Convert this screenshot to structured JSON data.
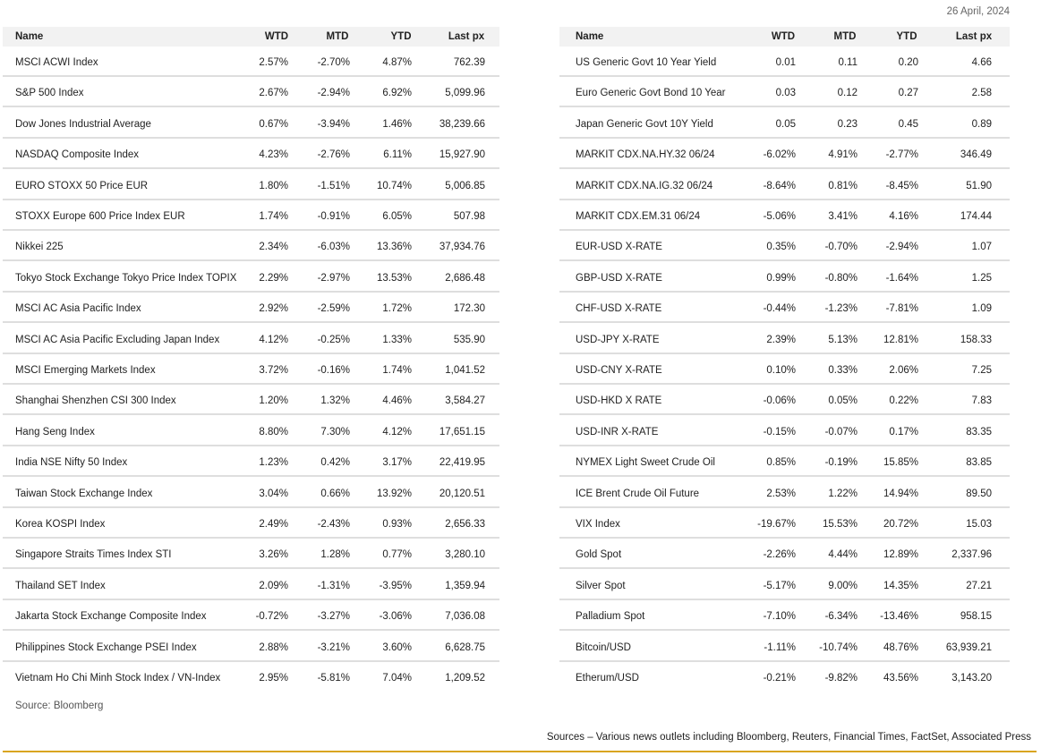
{
  "date": "26 April, 2024",
  "left_table": {
    "header": [
      "Name",
      "WTD",
      "MTD",
      "YTD",
      "Last px"
    ],
    "rows": [
      [
        "MSCI ACWI Index",
        "2.57%",
        "-2.70%",
        "4.87%",
        "762.39"
      ],
      [
        "S&P 500 Index",
        "2.67%",
        "-2.94%",
        "6.92%",
        "5,099.96"
      ],
      [
        "Dow Jones Industrial Average",
        "0.67%",
        "-3.94%",
        "1.46%",
        "38,239.66"
      ],
      [
        "NASDAQ Composite Index",
        "4.23%",
        "-2.76%",
        "6.11%",
        "15,927.90"
      ],
      [
        "EURO STOXX 50 Price EUR",
        "1.80%",
        "-1.51%",
        "10.74%",
        "5,006.85"
      ],
      [
        "STOXX Europe 600 Price Index EUR",
        "1.74%",
        "-0.91%",
        "6.05%",
        "507.98"
      ],
      [
        "Nikkei 225",
        "2.34%",
        "-6.03%",
        "13.36%",
        "37,934.76"
      ],
      [
        "Tokyo Stock Exchange Tokyo Price Index TOPIX",
        "2.29%",
        "-2.97%",
        "13.53%",
        "2,686.48"
      ],
      [
        "MSCI AC Asia Pacific Index",
        "2.92%",
        "-2.59%",
        "1.72%",
        "172.30"
      ],
      [
        "MSCI AC Asia Pacific Excluding Japan Index",
        "4.12%",
        "-0.25%",
        "1.33%",
        "535.90"
      ],
      [
        "MSCI Emerging Markets Index",
        "3.72%",
        "-0.16%",
        "1.74%",
        "1,041.52"
      ],
      [
        "Shanghai Shenzhen CSI 300 Index",
        "1.20%",
        "1.32%",
        "4.46%",
        "3,584.27"
      ],
      [
        "Hang Seng Index",
        "8.80%",
        "7.30%",
        "4.12%",
        "17,651.15"
      ],
      [
        "India NSE Nifty 50 Index",
        "1.23%",
        "0.42%",
        "3.17%",
        "22,419.95"
      ],
      [
        "Taiwan Stock Exchange Index",
        "3.04%",
        "0.66%",
        "13.92%",
        "20,120.51"
      ],
      [
        "Korea KOSPI Index",
        "2.49%",
        "-2.43%",
        "0.93%",
        "2,656.33"
      ],
      [
        "Singapore Straits Times Index STI",
        "3.26%",
        "1.28%",
        "0.77%",
        "3,280.10"
      ],
      [
        "Thailand SET Index",
        "2.09%",
        "-1.31%",
        "-3.95%",
        "1,359.94"
      ],
      [
        "Jakarta Stock Exchange Composite Index",
        "-0.72%",
        "-3.27%",
        "-3.06%",
        "7,036.08"
      ],
      [
        "Philippines Stock Exchange PSEI Index",
        "2.88%",
        "-3.21%",
        "3.60%",
        "6,628.75"
      ],
      [
        "Vietnam Ho Chi Minh Stock Index / VN-Index",
        "2.95%",
        "-5.81%",
        "7.04%",
        "1,209.52"
      ]
    ],
    "source": "Source: Bloomberg"
  },
  "right_table": {
    "header": [
      "Name",
      "WTD",
      "MTD",
      "YTD",
      "Last px"
    ],
    "rows": [
      [
        "US Generic Govt 10 Year Yield",
        "0.01",
        "0.11",
        "0.20",
        "4.66"
      ],
      [
        "Euro Generic Govt Bond 10 Year",
        "0.03",
        "0.12",
        "0.27",
        "2.58"
      ],
      [
        "Japan Generic Govt 10Y Yield",
        "0.05",
        "0.23",
        "0.45",
        "0.89"
      ],
      [
        "MARKIT CDX.NA.HY.32 06/24",
        "-6.02%",
        "4.91%",
        "-2.77%",
        "346.49"
      ],
      [
        "MARKIT CDX.NA.IG.32 06/24",
        "-8.64%",
        "0.81%",
        "-8.45%",
        "51.90"
      ],
      [
        "MARKIT CDX.EM.31 06/24",
        "-5.06%",
        "3.41%",
        "4.16%",
        "174.44"
      ],
      [
        "EUR-USD X-RATE",
        "0.35%",
        "-0.70%",
        "-2.94%",
        "1.07"
      ],
      [
        "GBP-USD X-RATE",
        "0.99%",
        "-0.80%",
        "-1.64%",
        "1.25"
      ],
      [
        "CHF-USD X-RATE",
        "-0.44%",
        "-1.23%",
        "-7.81%",
        "1.09"
      ],
      [
        "USD-JPY X-RATE",
        "2.39%",
        "5.13%",
        "12.81%",
        "158.33"
      ],
      [
        "USD-CNY X-RATE",
        "0.10%",
        "0.33%",
        "2.06%",
        "7.25"
      ],
      [
        "USD-HKD X RATE",
        "-0.06%",
        "0.05%",
        "0.22%",
        "7.83"
      ],
      [
        "USD-INR X-RATE",
        "-0.15%",
        "-0.07%",
        "0.17%",
        "83.35"
      ],
      [
        "NYMEX Light Sweet Crude Oil",
        "0.85%",
        "-0.19%",
        "15.85%",
        "83.85"
      ],
      [
        "ICE Brent Crude Oil Future",
        "2.53%",
        "1.22%",
        "14.94%",
        "89.50"
      ],
      [
        "VIX Index",
        "-19.67%",
        "15.53%",
        "20.72%",
        "15.03"
      ],
      [
        "Gold Spot",
        "-2.26%",
        "4.44%",
        "12.89%",
        "2,337.96"
      ],
      [
        "Silver Spot",
        "-5.17%",
        "9.00%",
        "14.35%",
        "27.21"
      ],
      [
        "Palladium Spot",
        "-7.10%",
        "-6.34%",
        "-13.46%",
        "958.15"
      ],
      [
        "Bitcoin/USD",
        "-1.11%",
        "-10.74%",
        "48.76%",
        "63,939.21"
      ],
      [
        "Etherum/USD",
        "-0.21%",
        "-9.82%",
        "43.56%",
        "3,143.20"
      ]
    ]
  },
  "footer": "Sources – Various news outlets including Bloomberg, Reuters, Financial Times, FactSet, Associated Press"
}
